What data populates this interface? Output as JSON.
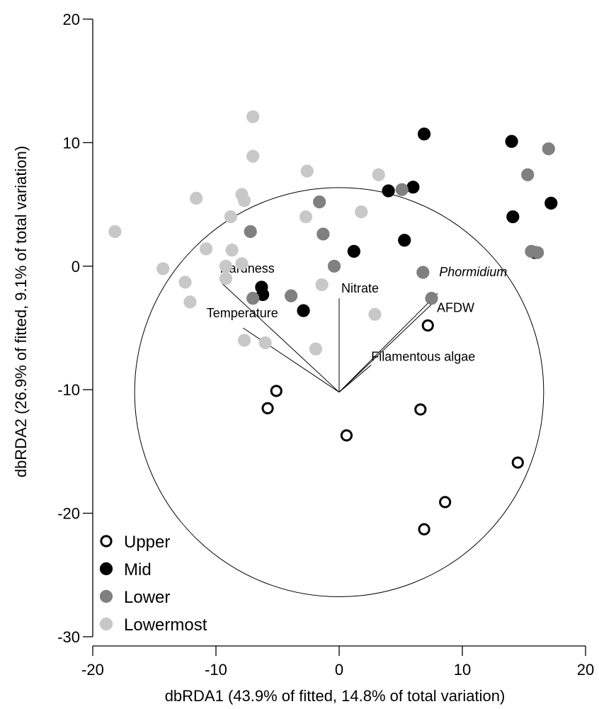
{
  "chart_data": {
    "type": "scatter",
    "xlabel": "dbRDA1 (43.9% of fitted, 14.8% of total variation)",
    "ylabel": "dbRDA2 (26.9% of fitted, 9.1% of total variation)",
    "xlim": [
      -20,
      20
    ],
    "ylim": [
      -30,
      20
    ],
    "xticks": [
      -20,
      -10,
      0,
      10,
      20
    ],
    "yticks": [
      20,
      10,
      0,
      -10,
      -20,
      -30
    ],
    "grid": false,
    "legend_position": "bottom-left",
    "circle": {
      "cx": 0,
      "cy": -10.2,
      "r": 16.6
    },
    "vectors": [
      {
        "label": "Hardness",
        "italic": false,
        "x": -9.5,
        "y": -1.4
      },
      {
        "label": "Nitrate",
        "italic": false,
        "x": 0,
        "y": -2.6
      },
      {
        "label": "Temperature",
        "italic": false,
        "x": -7.8,
        "y": -5.0
      },
      {
        "label": "Phormidium",
        "italic": true,
        "x": 8.0,
        "y": -2.2
      },
      {
        "label": "AFDW",
        "italic": false,
        "x": 7.7,
        "y": -2.9
      },
      {
        "label": "Filamentous algae",
        "italic": false,
        "x": 2.6,
        "y": -8.0
      }
    ],
    "series": [
      {
        "name": "Upper",
        "fill": "#ffffff",
        "stroke": "#000000",
        "points": [
          [
            7.2,
            -4.8
          ],
          [
            -5.1,
            -10.1
          ],
          [
            -5.8,
            -11.5
          ],
          [
            0.6,
            -13.7
          ],
          [
            6.6,
            -11.6
          ],
          [
            14.5,
            -15.9
          ],
          [
            8.6,
            -19.1
          ],
          [
            6.9,
            -21.3
          ]
        ]
      },
      {
        "name": "Mid",
        "fill": "#000000",
        "stroke": "#000000",
        "points": [
          [
            6.9,
            10.7
          ],
          [
            14.0,
            10.1
          ],
          [
            4.0,
            6.1
          ],
          [
            6.0,
            6.4
          ],
          [
            14.1,
            4.0
          ],
          [
            17.2,
            5.1
          ],
          [
            5.3,
            2.1
          ],
          [
            1.2,
            1.2
          ],
          [
            -6.3,
            -1.7
          ],
          [
            -6.2,
            -2.3
          ],
          [
            -2.9,
            -3.6
          ],
          [
            15.9,
            1.1
          ]
        ]
      },
      {
        "name": "Lower",
        "fill": "#808080",
        "stroke": "#808080",
        "points": [
          [
            17.0,
            9.5
          ],
          [
            15.3,
            7.4
          ],
          [
            5.1,
            6.2
          ],
          [
            -1.6,
            5.2
          ],
          [
            -7.2,
            2.8
          ],
          [
            -1.3,
            2.6
          ],
          [
            -0.4,
            0.0
          ],
          [
            6.8,
            -0.5
          ],
          [
            7.5,
            -2.6
          ],
          [
            -3.9,
            -2.4
          ],
          [
            -7.0,
            -2.6
          ],
          [
            15.6,
            1.2
          ],
          [
            16.1,
            1.1
          ]
        ]
      },
      {
        "name": "Lowermost",
        "fill": "#c8c8c8",
        "stroke": "#c8c8c8",
        "points": [
          [
            -7.0,
            12.1
          ],
          [
            -7.0,
            8.9
          ],
          [
            -2.6,
            7.7
          ],
          [
            3.2,
            7.4
          ],
          [
            -18.2,
            2.8
          ],
          [
            -11.6,
            5.5
          ],
          [
            -7.9,
            5.8
          ],
          [
            -7.7,
            5.3
          ],
          [
            -8.8,
            4.0
          ],
          [
            -2.7,
            4.0
          ],
          [
            1.8,
            4.4
          ],
          [
            -10.8,
            1.4
          ],
          [
            -8.7,
            1.3
          ],
          [
            -9.2,
            0.0
          ],
          [
            -7.9,
            0.2
          ],
          [
            -14.3,
            -0.2
          ],
          [
            -12.5,
            -1.3
          ],
          [
            -12.1,
            -2.9
          ],
          [
            -9.2,
            -1.0
          ],
          [
            -1.4,
            -1.5
          ],
          [
            2.9,
            -3.9
          ],
          [
            -7.7,
            -6.0
          ],
          [
            -6.0,
            -6.2
          ],
          [
            -1.9,
            -6.7
          ]
        ]
      }
    ]
  }
}
